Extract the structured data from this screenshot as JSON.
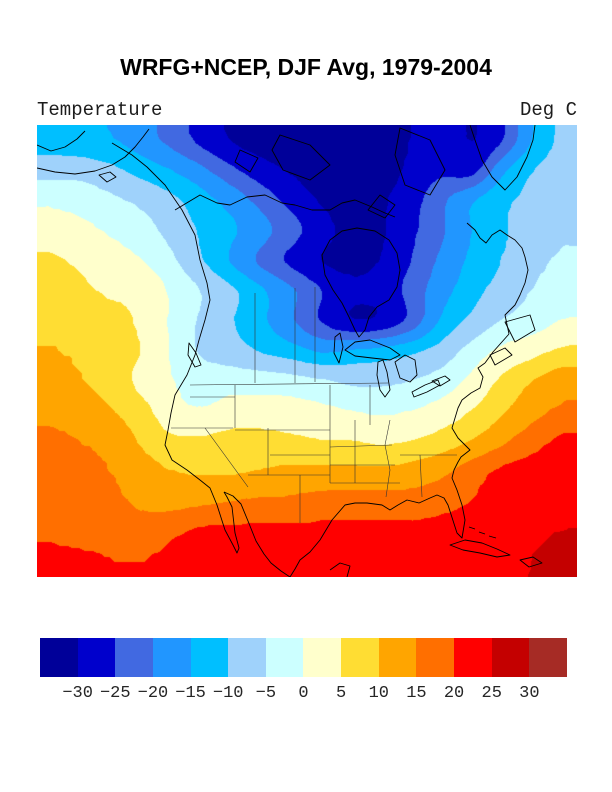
{
  "title": "WRFG+NCEP, DJF Avg, 1979-2004",
  "subtitle_left": "Temperature",
  "subtitle_right": "Deg C",
  "chart_data": {
    "type": "heatmap",
    "title": "WRFG+NCEP, DJF Avg, 1979-2004",
    "variable": "Temperature",
    "units": "Deg C",
    "region": "North America",
    "legend_position": "bottom",
    "levels": [
      -30,
      -25,
      -20,
      -15,
      -10,
      -5,
      0,
      5,
      10,
      15,
      20,
      25,
      30
    ],
    "palette": [
      "#000099",
      "#0000CC",
      "#4169E1",
      "#2196FF",
      "#00BFFF",
      "#9FD2FB",
      "#CCFFFF",
      "#FFFFCC",
      "#FFDD33",
      "#FFA500",
      "#FF6F00",
      "#FF0000",
      "#C40000",
      "#A62B25"
    ],
    "grid": {
      "ncols": 18,
      "nrows": 15,
      "values": [
        [
          -13,
          -14,
          -15,
          -18,
          -22,
          -27,
          -31,
          -33,
          -34,
          -34,
          -34,
          -33,
          -30,
          -27,
          -31,
          -26,
          -15,
          -9
        ],
        [
          -7,
          -7,
          -9,
          -12,
          -15,
          -19,
          -24,
          -28,
          -31,
          -33,
          -34,
          -33,
          -29,
          -26,
          -28,
          -16,
          -10,
          -8
        ],
        [
          -1,
          -2,
          -4,
          -6,
          -9,
          -13,
          -17,
          -22,
          -27,
          -31,
          -33,
          -31,
          -27,
          -21,
          -15,
          -11,
          -9,
          -7
        ],
        [
          2,
          1,
          -1,
          -3,
          -7,
          -11,
          -14,
          -18,
          -23,
          -28,
          -32,
          -31,
          -26,
          -21,
          -15,
          -11,
          -8,
          -6
        ],
        [
          6,
          4,
          2,
          0,
          -4,
          -10,
          -16,
          -22,
          -27,
          -31,
          -32,
          -30,
          -25,
          -19,
          -14,
          -10,
          -7,
          -4
        ],
        [
          7,
          6,
          4,
          4,
          -1,
          -5,
          -9,
          -14,
          -19,
          -25,
          -29,
          -28,
          -23,
          -17,
          -12,
          -8,
          -5,
          -2
        ],
        [
          9,
          8,
          7,
          4,
          -1,
          -6,
          -10,
          -14,
          -20,
          -26,
          -31,
          -30,
          -24,
          -14,
          -9,
          -5,
          -3,
          0
        ],
        [
          10,
          9,
          7,
          5,
          -1,
          -6,
          -8,
          -11,
          -13,
          -16,
          -14,
          -13,
          -11,
          -8,
          -3,
          1,
          3,
          6
        ],
        [
          12,
          10,
          8,
          3,
          0,
          -2,
          -2,
          -2,
          -3,
          -4,
          -6,
          -6,
          -5,
          -3,
          1,
          6,
          10,
          13
        ],
        [
          14,
          12,
          10,
          7,
          1,
          0,
          2,
          2,
          2,
          1,
          0,
          -1,
          0,
          2,
          5,
          9,
          13,
          16
        ],
        [
          16,
          15,
          13,
          9,
          6,
          6,
          7,
          7,
          6,
          5,
          5,
          4,
          5,
          7,
          10,
          14,
          18,
          21
        ],
        [
          17,
          16,
          15,
          12,
          10,
          9,
          9,
          10,
          11,
          11,
          11,
          11,
          12,
          14,
          18,
          21,
          22,
          22
        ],
        [
          18,
          17,
          16,
          14,
          13,
          14,
          15,
          16,
          16,
          17,
          17,
          17,
          17,
          18,
          20,
          21,
          22,
          23
        ],
        [
          19,
          18,
          18,
          17,
          19,
          21,
          21,
          21,
          21,
          21,
          21,
          21,
          21,
          22,
          22,
          22,
          24,
          25
        ],
        [
          21,
          21,
          20,
          20,
          21,
          22,
          22,
          22,
          22,
          22,
          22,
          22,
          22,
          22,
          23,
          23,
          25,
          27
        ]
      ]
    },
    "map_overlay": {
      "coast_color": "#000000",
      "border_color": "#333333",
      "coasts": [
        "M0,43 L18,47 L38,49 L58,46 L75,40 L88,32 L98,22 L106,12 L112,4",
        "M75,18 L95,30 L110,42 L128,60 L145,85 L158,110 L163,135 L170,158 L173,175 L168,195 L162,215 L158,230 L150,250 L138,270 L134,288 L131,305 L128,320 L135,335 L150,345 L163,355 L173,363 L180,380 L188,405 L196,420 L200,428 L202,423 L198,408 L195,382 L190,372 L187,367",
        "M187,367 L196,371 L204,379 L211,396 L219,416 L227,429 L234,438 L244,446 L253,452",
        "M0,20 L14,26 L28,22 L40,14 L48,6",
        "M62,50 L73,47 L79,52 L70,57 Z",
        "M152,218 L159,228 L164,240 L158,242 L151,230 Z",
        "M138,85 L163,70 L180,78 L193,80 L210,72 L228,70 L245,78 L258,80 L275,85 L293,85 L305,78 L318,75 L335,82 L348,88 L358,92",
        "M293,115 L285,130 L288,150 L296,165 L305,178 L312,192 L318,205 L322,212 L328,205 L332,192 L340,182 L352,175 L360,162 L363,145 L360,128 L352,115 L338,106 L320,103 L305,106 Z",
        "M448,238 L441,243 L446,252 L443,263 L434,268 L425,275 L421,283 L418,293 L415,303 L421,313 L433,325 L424,332 L421,337 L417,345 L415,353 L420,365 L425,380 L428,395 L425,413 L420,408 L411,380 L407,373 L400,370 L393,373 L382,378 L370,375 L361,380 L353,385 L345,380 L330,378 L318,378 L308,380 L295,395 L283,415 L273,427 L263,435 L258,444 L253,452",
        "M448,238 L456,227 L464,218 L472,209",
        "M468,197 L493,190 L498,205 L478,217 Z",
        "M453,230 L468,223 L475,230 L458,240 Z",
        "M472,209 L468,190 L478,180 L483,170 L488,158 L491,145 L488,132 L485,123 L478,115 L470,110 L463,105 L455,110 L449,118 L443,113 L438,105 L430,98",
        "M433,0 L438,15 L445,35 L455,52 L468,65 L480,52 L490,32 L496,15 L498,0",
        "M363,3 L393,15 L408,45 L393,70 L368,60 L358,30 Z",
        "M243,10 L273,20 L293,40 L273,55 L246,45 L235,25 Z",
        "M343,70 L358,80 L348,93 L331,85 Z",
        "M203,25 L221,33 L213,47 L198,37 Z",
        "M413,420 L428,415 L445,418 L460,424 L473,430 L460,432 L443,428 L426,425 Z",
        "M483,435 L496,432 L505,438 L492,442 Z",
        "M293,445 L303,438 L313,441 L310,452",
        "M432,402 L438,404 M442,407 L448,409 M452,411 L459,413"
      ],
      "lakes": [
        "M308,225 L318,217 L333,215 L353,223 L363,230 L353,235 L335,233 L318,231 Z",
        "M341,237 L346,235 L350,247 L353,265 L348,272 L343,265 L340,250 Z",
        "M358,237 L368,230 L378,235 L380,250 L373,257 L363,253 Z",
        "M375,267 L388,260 L401,255 L403,260 L390,267 L377,272 Z",
        "M395,256 L408,251 L413,255 L403,261 Z",
        "M298,212 L303,208 L306,222 L302,238 L297,228 Z"
      ],
      "borders": [
        "M153,260 L351,258",
        "M153,272 L198,272",
        "M134,303 L196,303",
        "M198,260 L198,303",
        "M168,303 L211,362",
        "M231,303 L231,350",
        "M211,350 L293,350",
        "M263,350 L263,398",
        "M198,305 L293,305",
        "M233,330 L293,330",
        "M293,260 L293,358",
        "M333,260 L333,300",
        "M293,322 L355,320",
        "M293,340 L358,340",
        "M293,358 L363,358",
        "M353,295 L348,320 L353,345 L349,372",
        "M318,295 L318,358",
        "M363,330 L420,330",
        "M383,330 L385,372",
        "M218,258 L218,168",
        "M258,258 L258,163",
        "M278,257 L278,162"
      ]
    }
  }
}
